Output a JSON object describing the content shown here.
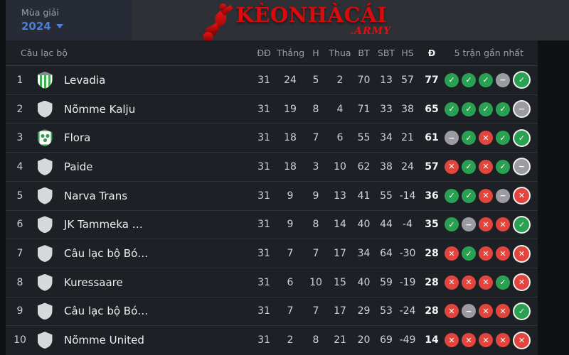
{
  "header": {
    "season_label": "Mùa giải",
    "season_value": "2024",
    "logo_text": "KèoNhàCái",
    "logo_suffix": ".ARMY"
  },
  "table": {
    "club_column": "Câu lạc bộ",
    "stat_columns": [
      "ĐĐ",
      "Thắng",
      "H",
      "Thua",
      "BT",
      "SBT",
      "HS",
      "Đ"
    ],
    "form_column": "5 trận gần nhất",
    "rows": [
      {
        "pos": 1,
        "name": "Levadia",
        "badge": "levadia",
        "stats": [
          31,
          24,
          5,
          2,
          70,
          13,
          57
        ],
        "points": 77,
        "form": [
          "w",
          "w",
          "w",
          "d",
          "w"
        ]
      },
      {
        "pos": 2,
        "name": "Nõmme Kalju",
        "badge": "generic",
        "stats": [
          31,
          19,
          8,
          4,
          71,
          33,
          38
        ],
        "points": 65,
        "form": [
          "w",
          "w",
          "w",
          "w",
          "d"
        ]
      },
      {
        "pos": 3,
        "name": "Flora",
        "badge": "flora",
        "stats": [
          31,
          18,
          7,
          6,
          55,
          34,
          21
        ],
        "points": 61,
        "form": [
          "d",
          "w",
          "l",
          "w",
          "w"
        ]
      },
      {
        "pos": 4,
        "name": "Paide",
        "badge": "generic",
        "stats": [
          31,
          18,
          3,
          10,
          62,
          38,
          24
        ],
        "points": 57,
        "form": [
          "l",
          "w",
          "l",
          "w",
          "d"
        ]
      },
      {
        "pos": 5,
        "name": "Narva Trans",
        "badge": "generic",
        "stats": [
          31,
          9,
          9,
          13,
          41,
          55,
          -14
        ],
        "points": 36,
        "form": [
          "w",
          "w",
          "l",
          "d",
          "l"
        ]
      },
      {
        "pos": 6,
        "name": "JK Tammeka …",
        "badge": "generic",
        "stats": [
          31,
          9,
          8,
          14,
          40,
          44,
          -4
        ],
        "points": 35,
        "form": [
          "w",
          "d",
          "l",
          "l",
          "w"
        ]
      },
      {
        "pos": 7,
        "name": "Câu lạc bộ Bó…",
        "badge": "generic",
        "stats": [
          31,
          7,
          7,
          17,
          34,
          64,
          -30
        ],
        "points": 28,
        "form": [
          "l",
          "w",
          "l",
          "l",
          "l"
        ]
      },
      {
        "pos": 8,
        "name": "Kuressaare",
        "badge": "generic",
        "stats": [
          31,
          6,
          10,
          15,
          40,
          59,
          -19
        ],
        "points": 28,
        "form": [
          "l",
          "l",
          "l",
          "w",
          "l"
        ]
      },
      {
        "pos": 9,
        "name": "Câu lạc bộ Bó…",
        "badge": "generic",
        "stats": [
          31,
          7,
          7,
          17,
          29,
          53,
          -24
        ],
        "points": 28,
        "form": [
          "l",
          "d",
          "l",
          "l",
          "w"
        ]
      },
      {
        "pos": 10,
        "name": "Nõmme United",
        "badge": "generic",
        "stats": [
          31,
          2,
          8,
          21,
          20,
          69,
          -49
        ],
        "points": 14,
        "form": [
          "l",
          "l",
          "l",
          "l",
          "l"
        ]
      }
    ]
  },
  "icons": {
    "win": "✓",
    "draw": "−",
    "loss": "✕",
    "chevron_down": "chevron-down"
  },
  "colors": {
    "accent_blue": "#4b7fd9",
    "win_green": "#2aa152",
    "loss_red": "#e2453d",
    "draw_gray": "#9b9ba1",
    "logo_red": "#dc0b0b",
    "topbar_bg": "#2e3036",
    "table_bg": "#1d2024"
  }
}
